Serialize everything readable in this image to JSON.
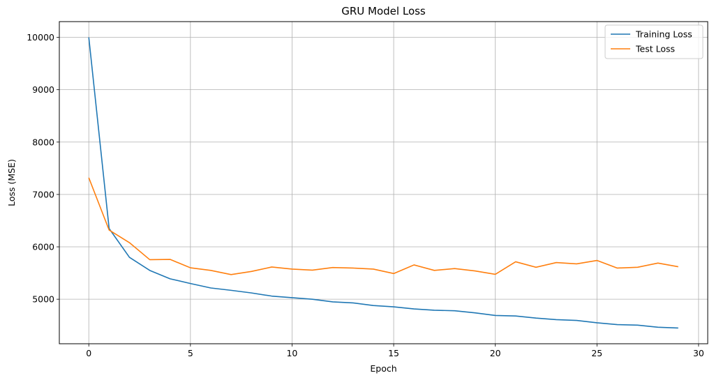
{
  "chart_data": {
    "type": "line",
    "title": "GRU Model Loss",
    "xlabel": "Epoch",
    "ylabel": "Loss (MSE)",
    "xlim": [
      -1.45,
      30.45
    ],
    "ylim": [
      4150,
      10300
    ],
    "xticks": [
      0,
      5,
      10,
      15,
      20,
      25,
      30
    ],
    "yticks": [
      5000,
      6000,
      7000,
      8000,
      9000,
      10000
    ],
    "grid": true,
    "legend_position": "top-right",
    "x": [
      0,
      1,
      2,
      3,
      4,
      5,
      6,
      7,
      8,
      9,
      10,
      11,
      12,
      13,
      14,
      15,
      16,
      17,
      18,
      19,
      20,
      21,
      22,
      23,
      24,
      25,
      26,
      27,
      28,
      29
    ],
    "series": [
      {
        "name": "Training Loss",
        "color": "#1f77b4",
        "values": [
          10000,
          6350,
          5800,
          5550,
          5390,
          5300,
          5215,
          5170,
          5120,
          5060,
          5030,
          5000,
          4950,
          4930,
          4880,
          4855,
          4815,
          4790,
          4780,
          4740,
          4690,
          4680,
          4640,
          4610,
          4595,
          4550,
          4515,
          4505,
          4465,
          4450
        ]
      },
      {
        "name": "Test Loss",
        "color": "#ff7f0e",
        "values": [
          7320,
          6320,
          6080,
          5755,
          5760,
          5600,
          5550,
          5470,
          5530,
          5615,
          5575,
          5555,
          5605,
          5595,
          5575,
          5490,
          5655,
          5550,
          5585,
          5540,
          5475,
          5715,
          5610,
          5700,
          5675,
          5740,
          5595,
          5610,
          5690,
          5620
        ]
      }
    ]
  }
}
